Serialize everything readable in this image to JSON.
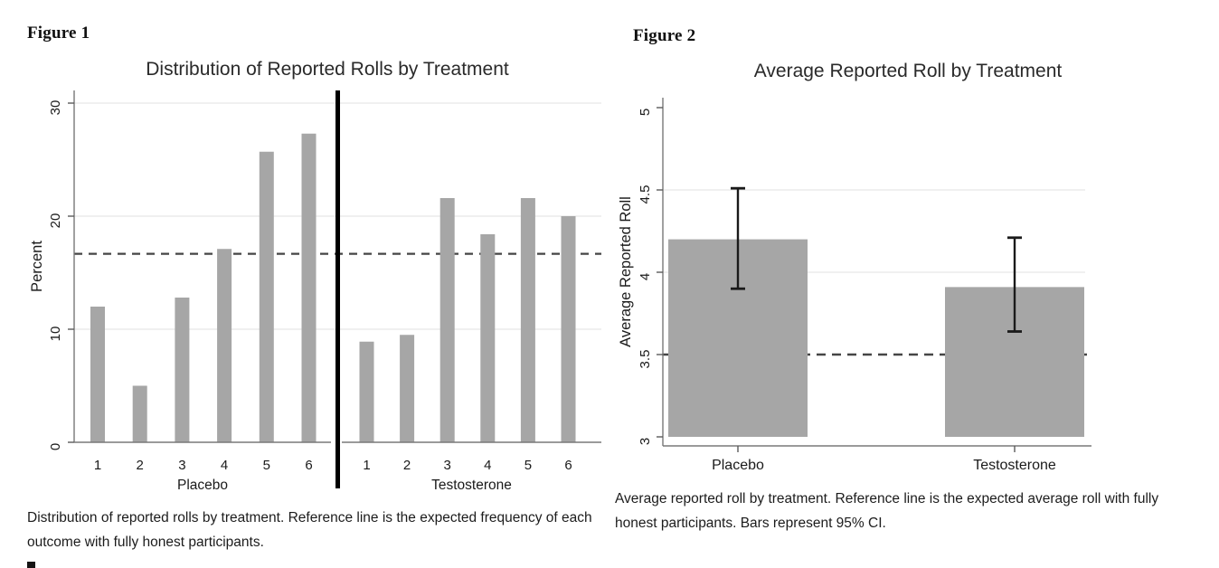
{
  "figure1": {
    "label": "Figure 1",
    "caption_lines": [
      "Distribution of reported rolls by treatment. Reference line is the expected frequency of each",
      "outcome with fully honest participants."
    ]
  },
  "figure2": {
    "label": "Figure 2",
    "caption_lines": [
      "Average reported roll by treatment. Reference line is the expected average roll with fully",
      "honest participants. Bars represent 95% CI."
    ]
  },
  "colors": {
    "bar_fill": "#a6a6a6",
    "gridline": "#e8e8e8",
    "axis": "#787878",
    "tick": "#5a5a5a",
    "reference_line": "#454545",
    "divider": "#000000",
    "error_bar": "#1a1a1a",
    "text": "#1a1a1a",
    "title_text": "#2a2a2a"
  },
  "chart_data": [
    {
      "type": "bar",
      "title": "Distribution of Reported Rolls by Treatment",
      "ylabel": "Percent",
      "ylim": [
        0,
        30
      ],
      "yticks": [
        "0",
        "10",
        "20",
        "30"
      ],
      "ytick_values": [
        0,
        10,
        20,
        30
      ],
      "gridlines_at": [
        10,
        20,
        30
      ],
      "grid": true,
      "reference_line": 16.67,
      "reference_line_note": "expected frequency of each outcome with fully honest participants",
      "legend": "none",
      "panels": [
        {
          "label": "Placebo",
          "categories": [
            "1",
            "2",
            "3",
            "4",
            "5",
            "6"
          ],
          "values": [
            12.0,
            5.0,
            12.8,
            17.1,
            25.7,
            27.3
          ]
        },
        {
          "label": "Testosterone",
          "categories": [
            "1",
            "2",
            "3",
            "4",
            "5",
            "6"
          ],
          "values": [
            8.9,
            9.5,
            21.6,
            18.4,
            21.6,
            20.0
          ]
        }
      ]
    },
    {
      "type": "bar",
      "title": "Average Reported Roll by Treatment",
      "ylabel": "Average Reported Roll",
      "ylim": [
        3,
        5
      ],
      "yticks": [
        "3",
        "3.5",
        "4",
        "4.5",
        "5"
      ],
      "ytick_values": [
        3,
        3.5,
        4,
        4.5,
        5
      ],
      "gridlines_at": [
        4,
        4.5
      ],
      "grid": true,
      "reference_line": 3.5,
      "reference_line_note": "expected average roll with fully honest participants",
      "legend": "none",
      "categories": [
        "Placebo",
        "Testosterone"
      ],
      "values": [
        4.2,
        3.91
      ],
      "ci95": [
        [
          3.9,
          4.51
        ],
        [
          3.64,
          4.21
        ]
      ]
    }
  ]
}
